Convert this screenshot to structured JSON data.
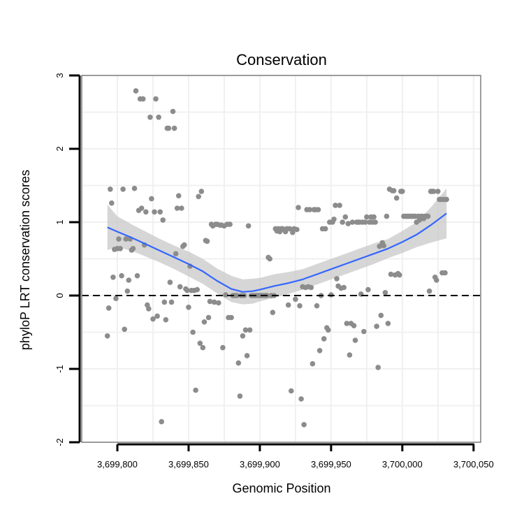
{
  "colors": {
    "points": "#8c8c8c",
    "smooth_line": "#3366ff",
    "ribbon": "#c8c8c8",
    "grid": "#f0f0f0",
    "panel_border": "#7f7f7f",
    "reference_line": "#000000"
  },
  "chart_data": {
    "type": "scatter",
    "title": "Conservation",
    "xlabel": "Genomic Position",
    "ylabel": "phyloP LRT conservation scores",
    "xlim": [
      3699775,
      3700055
    ],
    "ylim": [
      -2,
      3
    ],
    "x_ticks": [
      3699800,
      3699850,
      3699900,
      3699950,
      3700000,
      3700050
    ],
    "x_tick_labels": [
      "3,699,800",
      "3,699,850",
      "3,699,900",
      "3,699,950",
      "3,700,000",
      "3,700,050"
    ],
    "y_ticks": [
      -2,
      -1,
      0,
      1,
      2,
      3
    ],
    "y_tick_labels": [
      "-2",
      "-1",
      "0",
      "1",
      "2",
      "3"
    ],
    "grid": true,
    "reference_line": {
      "y": 0,
      "style": "dashed"
    },
    "points": [
      [
        3699793,
        -0.55
      ],
      [
        3699794,
        -0.17
      ],
      [
        3699795,
        1.45
      ],
      [
        3699796,
        1.26
      ],
      [
        3699797,
        0.25
      ],
      [
        3699798,
        0.63
      ],
      [
        3699799,
        -0.04
      ],
      [
        3699800,
        0.64
      ],
      [
        3699801,
        0.77
      ],
      [
        3699802,
        0.64
      ],
      [
        3699803,
        0.27
      ],
      [
        3699804,
        1.45
      ],
      [
        3699805,
        -0.46
      ],
      [
        3699806,
        0.77
      ],
      [
        3699807,
        0.06
      ],
      [
        3699808,
        0.21
      ],
      [
        3699809,
        0.77
      ],
      [
        3699810,
        0.62
      ],
      [
        3699811,
        0.64
      ],
      [
        3699812,
        1.46
      ],
      [
        3699813,
        2.79
      ],
      [
        3699814,
        0.27
      ],
      [
        3699815,
        1.16
      ],
      [
        3699816,
        2.68
      ],
      [
        3699817,
        1.19
      ],
      [
        3699818,
        2.68
      ],
      [
        3699819,
        0.69
      ],
      [
        3699820,
        1.14
      ],
      [
        3699821,
        -0.13
      ],
      [
        3699822,
        -0.18
      ],
      [
        3699823,
        2.43
      ],
      [
        3699824,
        1.32
      ],
      [
        3699825,
        -0.32
      ],
      [
        3699826,
        1.14
      ],
      [
        3699827,
        2.68
      ],
      [
        3699828,
        -0.28
      ],
      [
        3699829,
        2.43
      ],
      [
        3699830,
        1.14
      ],
      [
        3699831,
        -1.72
      ],
      [
        3699832,
        1.03
      ],
      [
        3699833,
        -0.09
      ],
      [
        3699834,
        -0.33
      ],
      [
        3699835,
        2.28
      ],
      [
        3699836,
        2.28
      ],
      [
        3699837,
        0.18
      ],
      [
        3699838,
        -0.09
      ],
      [
        3699839,
        2.51
      ],
      [
        3699840,
        2.28
      ],
      [
        3699841,
        0.57
      ],
      [
        3699842,
        1.19
      ],
      [
        3699843,
        1.36
      ],
      [
        3699844,
        0.12
      ],
      [
        3699845,
        1.19
      ],
      [
        3699846,
        0.67
      ],
      [
        3699847,
        0.69
      ],
      [
        3699848,
        0.09
      ],
      [
        3699849,
        0.07
      ],
      [
        3699850,
        -0.16
      ],
      [
        3699851,
        0.4
      ],
      [
        3699852,
        0.07
      ],
      [
        3699853,
        -0.5
      ],
      [
        3699854,
        0.07
      ],
      [
        3699855,
        -1.29
      ],
      [
        3699856,
        0.08
      ],
      [
        3699857,
        1.35
      ],
      [
        3699858,
        -0.65
      ],
      [
        3699859,
        1.42
      ],
      [
        3699860,
        -0.71
      ],
      [
        3699861,
        -0.36
      ],
      [
        3699862,
        0.75
      ],
      [
        3699863,
        0.74
      ],
      [
        3699864,
        -0.3
      ],
      [
        3699865,
        -0.08
      ],
      [
        3699866,
        0.97
      ],
      [
        3699867,
        0.95
      ],
      [
        3699868,
        -0.09
      ],
      [
        3699869,
        0.97
      ],
      [
        3699870,
        0.97
      ],
      [
        3699871,
        -0.1
      ],
      [
        3699872,
        0.96
      ],
      [
        3699873,
        0.96
      ],
      [
        3699874,
        -0.71
      ],
      [
        3699875,
        0.95
      ],
      [
        3699876,
        0.01
      ],
      [
        3699877,
        0.97
      ],
      [
        3699878,
        -0.3
      ],
      [
        3699879,
        0.97
      ],
      [
        3699880,
        -0.3
      ],
      [
        3699881,
        0.0
      ],
      [
        3699882,
        0.0
      ],
      [
        3699883,
        0.0
      ],
      [
        3699884,
        0.0
      ],
      [
        3699885,
        -0.92
      ],
      [
        3699886,
        -1.37
      ],
      [
        3699887,
        0.0
      ],
      [
        3699888,
        -0.55
      ],
      [
        3699889,
        0.0
      ],
      [
        3699890,
        -0.47
      ],
      [
        3699891,
        -0.82
      ],
      [
        3699892,
        0.95
      ],
      [
        3699893,
        -0.47
      ],
      [
        3699894,
        0.0
      ],
      [
        3699895,
        0.0
      ],
      [
        3699896,
        0.0
      ],
      [
        3699897,
        0.0
      ],
      [
        3699898,
        0.0
      ],
      [
        3699899,
        0.0
      ],
      [
        3699900,
        0.0
      ],
      [
        3699901,
        0.0
      ],
      [
        3699902,
        0.0
      ],
      [
        3699903,
        0.0
      ],
      [
        3699904,
        0.0
      ],
      [
        3699905,
        0.0
      ],
      [
        3699906,
        0.52
      ],
      [
        3699907,
        0.5
      ],
      [
        3699908,
        0.0
      ],
      [
        3699909,
        -0.23
      ],
      [
        3699910,
        0.0
      ],
      [
        3699911,
        0.91
      ],
      [
        3699912,
        0.88
      ],
      [
        3699913,
        0.91
      ],
      [
        3699914,
        0.87
      ],
      [
        3699915,
        0.91
      ],
      [
        3699916,
        0.91
      ],
      [
        3699917,
        0.9
      ],
      [
        3699918,
        0.87
      ],
      [
        3699919,
        0.91
      ],
      [
        3699920,
        -0.13
      ],
      [
        3699921,
        0.91
      ],
      [
        3699922,
        -1.3
      ],
      [
        3699923,
        0.86
      ],
      [
        3699924,
        0.91
      ],
      [
        3699925,
        -0.05
      ],
      [
        3699926,
        0.9
      ],
      [
        3699927,
        1.2
      ],
      [
        3699928,
        -0.14
      ],
      [
        3699929,
        -1.41
      ],
      [
        3699930,
        0.12
      ],
      [
        3699931,
        -1.76
      ],
      [
        3699932,
        0.11
      ],
      [
        3699933,
        1.17
      ],
      [
        3699934,
        0.12
      ],
      [
        3699935,
        1.17
      ],
      [
        3699936,
        0.11
      ],
      [
        3699937,
        -0.93
      ],
      [
        3699938,
        1.17
      ],
      [
        3699939,
        1.17
      ],
      [
        3699940,
        -0.14
      ],
      [
        3699941,
        1.17
      ],
      [
        3699942,
        -0.75
      ],
      [
        3699943,
        0.0
      ],
      [
        3699944,
        0.91
      ],
      [
        3699945,
        -0.59
      ],
      [
        3699946,
        0.91
      ],
      [
        3699947,
        -0.44
      ],
      [
        3699948,
        -0.47
      ],
      [
        3699949,
        1.0
      ],
      [
        3699950,
        0.01
      ],
      [
        3699951,
        1.0
      ],
      [
        3699952,
        1.04
      ],
      [
        3699953,
        1.23
      ],
      [
        3699954,
        0.23
      ],
      [
        3699955,
        0.13
      ],
      [
        3699956,
        1.23
      ],
      [
        3699957,
        0.1
      ],
      [
        3699958,
        1.0
      ],
      [
        3699959,
        0.11
      ],
      [
        3699960,
        1.07
      ],
      [
        3699961,
        -0.38
      ],
      [
        3699962,
        0.98
      ],
      [
        3699963,
        -0.81
      ],
      [
        3699964,
        -0.38
      ],
      [
        3699965,
        1.0
      ],
      [
        3699966,
        -0.41
      ],
      [
        3699967,
        -0.61
      ],
      [
        3699968,
        1.0
      ],
      [
        3699969,
        1.0
      ],
      [
        3699970,
        1.0
      ],
      [
        3699971,
        0.02
      ],
      [
        3699972,
        1.0
      ],
      [
        3699973,
        -0.49
      ],
      [
        3699974,
        1.0
      ],
      [
        3699975,
        1.07
      ],
      [
        3699976,
        0.08
      ],
      [
        3699977,
        1.0
      ],
      [
        3699978,
        1.07
      ],
      [
        3699979,
        1.0
      ],
      [
        3699980,
        1.07
      ],
      [
        3699981,
        1.0
      ],
      [
        3699982,
        -0.42
      ],
      [
        3699983,
        -0.98
      ],
      [
        3699984,
        0.67
      ],
      [
        3699985,
        -0.27
      ],
      [
        3699986,
        0.72
      ],
      [
        3699987,
        0.68
      ],
      [
        3699988,
        0.04
      ],
      [
        3699989,
        1.08
      ],
      [
        3699990,
        -0.38
      ],
      [
        3699991,
        1.45
      ],
      [
        3699992,
        0.29
      ],
      [
        3699993,
        1.43
      ],
      [
        3699994,
        1.43
      ],
      [
        3699995,
        0.28
      ],
      [
        3699996,
        1.33
      ],
      [
        3699997,
        0.3
      ],
      [
        3699998,
        0.28
      ],
      [
        3699999,
        1.42
      ],
      [
        3700000,
        1.42
      ],
      [
        3700001,
        1.08
      ],
      [
        3700002,
        1.08
      ],
      [
        3700003,
        1.08
      ],
      [
        3700004,
        1.08
      ],
      [
        3700005,
        1.08
      ],
      [
        3700006,
        1.08
      ],
      [
        3700007,
        1.08
      ],
      [
        3700008,
        1.08
      ],
      [
        3700009,
        1.08
      ],
      [
        3700010,
        1.0
      ],
      [
        3700011,
        1.08
      ],
      [
        3700012,
        1.03
      ],
      [
        3700013,
        1.08
      ],
      [
        3700014,
        1.08
      ],
      [
        3700015,
        1.05
      ],
      [
        3700016,
        1.08
      ],
      [
        3700017,
        1.08
      ],
      [
        3700018,
        1.08
      ],
      [
        3700019,
        0.06
      ],
      [
        3700020,
        1.42
      ],
      [
        3700021,
        1.42
      ],
      [
        3700022,
        1.42
      ],
      [
        3700023,
        0.25
      ],
      [
        3700024,
        0.21
      ],
      [
        3700025,
        1.42
      ],
      [
        3700026,
        1.31
      ],
      [
        3700027,
        1.31
      ],
      [
        3700028,
        0.31
      ],
      [
        3700029,
        1.31
      ],
      [
        3700030,
        0.31
      ],
      [
        3700031,
        1.31
      ]
    ],
    "smooth": {
      "x": [
        3699793,
        3699800,
        3699810,
        3699820,
        3699830,
        3699840,
        3699850,
        3699860,
        3699870,
        3699880,
        3699888,
        3699895,
        3699900,
        3699910,
        3699920,
        3699930,
        3699940,
        3699950,
        3699960,
        3699970,
        3699980,
        3699990,
        3700000,
        3700010,
        3700020,
        3700031
      ],
      "y": [
        0.93,
        0.87,
        0.79,
        0.7,
        0.61,
        0.52,
        0.43,
        0.33,
        0.2,
        0.09,
        0.05,
        0.06,
        0.08,
        0.13,
        0.17,
        0.22,
        0.29,
        0.36,
        0.43,
        0.5,
        0.57,
        0.64,
        0.73,
        0.83,
        0.96,
        1.12
      ],
      "ymin": [
        0.62,
        0.66,
        0.61,
        0.53,
        0.45,
        0.36,
        0.26,
        0.16,
        0.03,
        -0.09,
        -0.12,
        -0.11,
        -0.08,
        -0.03,
        0.02,
        0.08,
        0.15,
        0.22,
        0.29,
        0.36,
        0.43,
        0.51,
        0.58,
        0.66,
        0.72,
        0.78
      ],
      "ymax": [
        1.24,
        1.08,
        0.97,
        0.87,
        0.77,
        0.68,
        0.6,
        0.5,
        0.37,
        0.27,
        0.22,
        0.23,
        0.24,
        0.29,
        0.32,
        0.36,
        0.43,
        0.5,
        0.57,
        0.64,
        0.71,
        0.77,
        0.88,
        1.0,
        1.2,
        1.46
      ]
    }
  }
}
